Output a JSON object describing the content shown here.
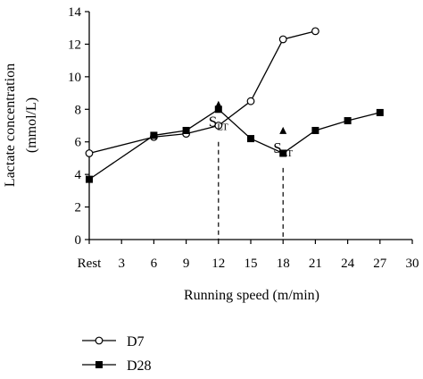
{
  "chart_data": {
    "type": "line",
    "xlabel": "Running speed (m/min)",
    "ylabel_line1": "Lactate concentration",
    "ylabel_line2": "(mmol/L)",
    "xlim": [
      0,
      30
    ],
    "ylim": [
      0,
      14
    ],
    "x_tick_values": [
      0,
      3,
      6,
      9,
      12,
      15,
      18,
      21,
      24,
      27,
      30
    ],
    "x_tick_labels": [
      "Rest",
      "3",
      "6",
      "9",
      "12",
      "15",
      "18",
      "21",
      "24",
      "27",
      "30"
    ],
    "y_ticks": [
      0,
      2,
      4,
      6,
      8,
      10,
      12,
      14
    ],
    "grid": false,
    "legend_position": "bottom-left",
    "series": [
      {
        "name": "D7",
        "marker": "open-circle",
        "color": "#000000",
        "x": [
          0,
          6,
          9,
          12,
          15,
          18,
          21
        ],
        "y": [
          5.3,
          6.3,
          6.5,
          7.0,
          8.5,
          12.3,
          12.8
        ]
      },
      {
        "name": "D28",
        "marker": "filled-square",
        "color": "#000000",
        "x": [
          0,
          6,
          9,
          12,
          15,
          18,
          21,
          24,
          27
        ],
        "y": [
          3.7,
          6.4,
          6.7,
          8.0,
          6.2,
          5.3,
          6.7,
          7.3,
          7.8
        ]
      }
    ],
    "annotations": [
      {
        "label": "S",
        "subscript": "LT",
        "x": 12,
        "y": 6.0,
        "dashed_to_axis": true
      },
      {
        "label": "S",
        "subscript": "LT",
        "x": 18,
        "y": 4.4,
        "dashed_to_axis": true
      }
    ]
  }
}
